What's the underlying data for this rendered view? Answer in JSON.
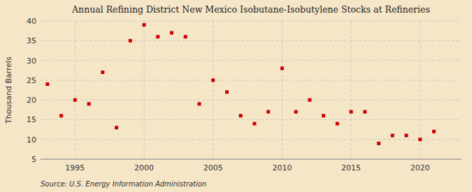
{
  "chart_data": {
    "type": "scatter",
    "title": "Annual Refining District New Mexico Isobutane-Isobutylene Stocks at Refineries",
    "ylabel": "Thousand Barrels",
    "source": "Source: U.S. Energy Information Administration",
    "color": "#cc0000",
    "marker": "square",
    "grid": true,
    "xlim": [
      1992.5,
      2023
    ],
    "ylim": [
      5,
      40
    ],
    "xticks": [
      1995,
      2000,
      2005,
      2010,
      2015,
      2020
    ],
    "yticks": [
      5,
      10,
      15,
      20,
      25,
      30,
      35,
      40
    ],
    "x": [
      1993,
      1994,
      1995,
      1996,
      1997,
      1998,
      1999,
      2000,
      2001,
      2002,
      2003,
      2004,
      2005,
      2006,
      2007,
      2008,
      2009,
      2010,
      2011,
      2012,
      2013,
      2014,
      2015,
      2016,
      2017,
      2018,
      2019,
      2020,
      2021
    ],
    "values": [
      24.0,
      16.0,
      20.0,
      19.0,
      27.0,
      13.0,
      35.0,
      39.0,
      36.0,
      37.0,
      36.0,
      19.0,
      25.0,
      22.0,
      16.0,
      14.0,
      17.0,
      28.0,
      17.0,
      20.0,
      16.0,
      14.0,
      17.0,
      17.0,
      9.0,
      11.0,
      11.0,
      10.0,
      12.0
    ]
  }
}
